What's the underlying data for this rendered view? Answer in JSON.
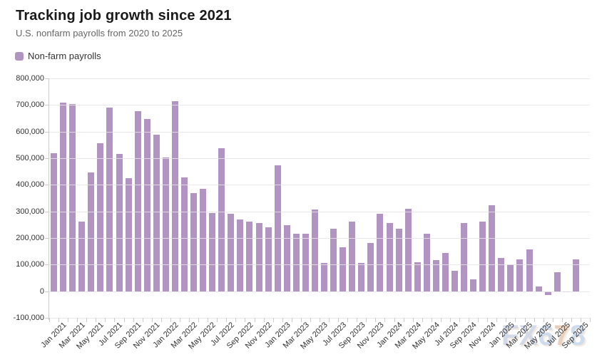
{
  "title": "Tracking job growth since 2021",
  "subtitle": "U.S. nonfarm payrolls from 2020 to 2025",
  "legend": {
    "label": "Non-farm payrolls"
  },
  "watermark": {
    "text": "FX678",
    "letters": [
      {
        "ch": "F",
        "color": "#b6c2d8"
      },
      {
        "ch": "X",
        "color": "#b6c2d8"
      },
      {
        "ch": "6",
        "color": "#aec4de"
      },
      {
        "ch": "7",
        "color": "#d9b191"
      },
      {
        "ch": "8",
        "color": "#aec7e2"
      }
    ]
  },
  "colors": {
    "bar": "#b294c2",
    "grid": "rgba(229,229,229,0.85)",
    "axis": "#cccccc",
    "axis_label": "#333333",
    "title": "#1a1a1a",
    "subtitle": "#666666"
  },
  "chart_data": {
    "type": "bar",
    "title": "Tracking job growth since 2021",
    "subtitle": "U.S. nonfarm payrolls from 2020 to 2025",
    "series_name": "Non-farm payrolls",
    "legend_position": "top-left",
    "grid": true,
    "ylim": [
      -100000,
      800000
    ],
    "y_tick_step": 100000,
    "x_label_interval": 2,
    "xlabel": "",
    "ylabel": "",
    "categories": [
      "Jan 2021",
      "Feb 2021",
      "Mar 2021",
      "Apr 2021",
      "May 2021",
      "Jun 2021",
      "Jul 2021",
      "Aug 2021",
      "Sep 2021",
      "Oct 2021",
      "Nov 2021",
      "Dec 2021",
      "Jan 2022",
      "Feb 2022",
      "Mar 2022",
      "Apr 2022",
      "May 2022",
      "Jun 2022",
      "Jul 2022",
      "Aug 2022",
      "Sep 2022",
      "Oct 2022",
      "Nov 2022",
      "Dec 2022",
      "Jan 2023",
      "Feb 2023",
      "Mar 2023",
      "Apr 2023",
      "May 2023",
      "Jun 2023",
      "Jul 2023",
      "Aug 2023",
      "Sep 2023",
      "Oct 2023",
      "Nov 2023",
      "Dec 2023",
      "Jan 2024",
      "Feb 2024",
      "Mar 2024",
      "Apr 2024",
      "May 2024",
      "Jun 2024",
      "Jul 2024",
      "Aug 2024",
      "Sep 2024",
      "Oct 2024",
      "Nov 2024",
      "Dec 2024",
      "Jan 2025",
      "Feb 2025",
      "Mar 2025",
      "Apr 2025",
      "May 2025",
      "Jun 2025",
      "Jul 2025",
      "Aug 2025",
      "Sep 2025",
      "Oct 2025"
    ],
    "values": [
      520000,
      710000,
      704000,
      263000,
      447000,
      557000,
      689000,
      517000,
      424000,
      677000,
      647000,
      588000,
      504000,
      714000,
      428000,
      368000,
      386000,
      293000,
      537000,
      292000,
      269000,
      263000,
      256000,
      239000,
      472000,
      248000,
      217000,
      217000,
      306000,
      105000,
      236000,
      165000,
      262000,
      105000,
      182000,
      290000,
      256000,
      236000,
      310000,
      108000,
      216000,
      118000,
      144000,
      78000,
      255000,
      44000,
      261000,
      323000,
      125000,
      102000,
      120000,
      158000,
      19000,
      -13000,
      72000,
      -4000,
      119000,
      null
    ]
  }
}
